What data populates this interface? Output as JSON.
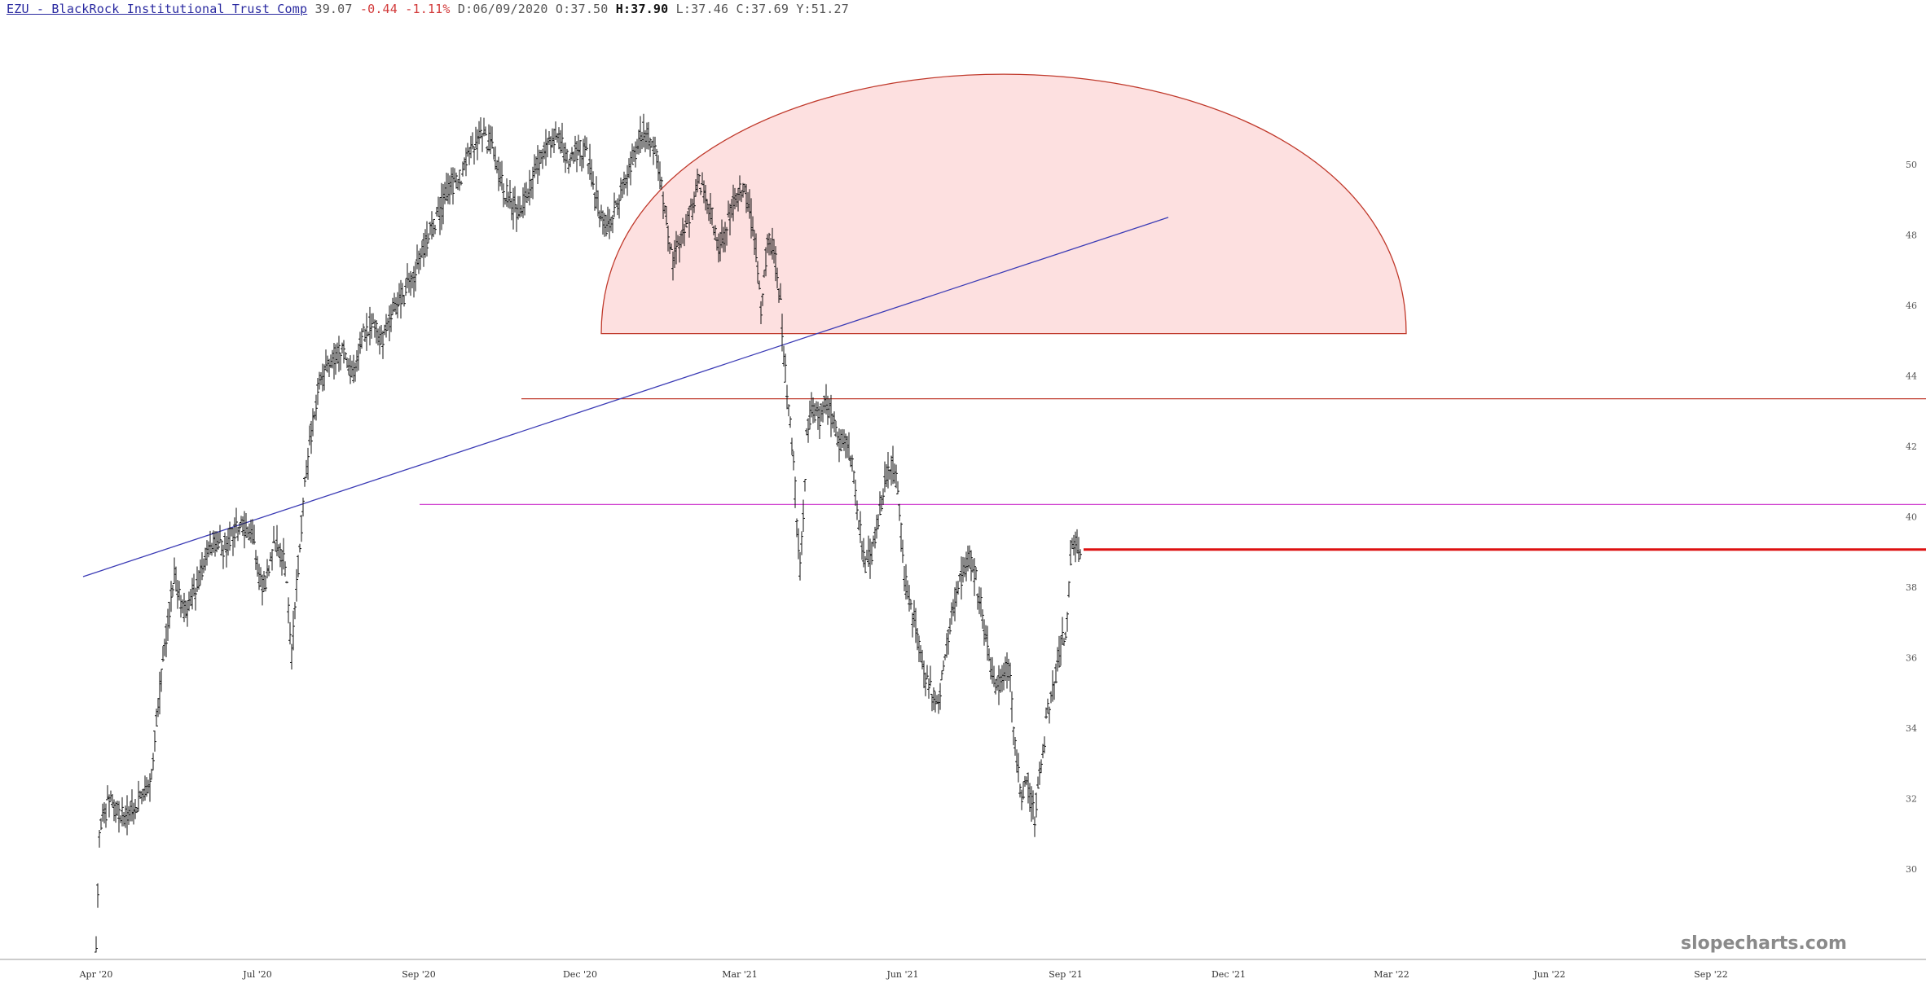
{
  "header": {
    "ticker": "EZU - BlackRock Institutional Trust Comp",
    "last": "39.07",
    "change": "-0.44",
    "change_pct": "-1.11%",
    "date_label": "D:",
    "date": "06/09/2020",
    "open_label": "O:",
    "open": "37.50",
    "high_label": "H:",
    "high": "37.90",
    "low_label": "L:",
    "low": "37.46",
    "close_label": "C:",
    "close": "37.69",
    "y_label": "Y:",
    "y": "51.27"
  },
  "watermark": "slopecharts.com",
  "colors": {
    "bars": "#111111",
    "dome_fill": "#fde0e0",
    "dome_stroke": "#c0392b",
    "trendline": "#3b3bb5",
    "resistance": "#c0392b",
    "support_magenta": "#d24ad2",
    "last_price_marker": "#dd1111"
  },
  "chart_data": {
    "type": "ohlc",
    "x_tick_labels": [
      "Apr '20",
      "Jul '20",
      "Sep '20",
      "Dec '20",
      "Mar '21",
      "Jun '21",
      "Sep '21",
      "Dec '21",
      "Mar '22",
      "Jun '22",
      "Sep '22"
    ],
    "y_ticks": [
      30,
      32,
      34,
      36,
      38,
      40,
      42,
      44,
      46,
      48,
      50
    ],
    "ylim": [
      27.4,
      51.6
    ],
    "close_path": [
      [
        0,
        27.8
      ],
      [
        2,
        31.0
      ],
      [
        8,
        32.0
      ],
      [
        16,
        31.5
      ],
      [
        24,
        31.8
      ],
      [
        30,
        32.2
      ],
      [
        34,
        32.6
      ],
      [
        36,
        33.8
      ],
      [
        40,
        35.5
      ],
      [
        44,
        37.0
      ],
      [
        48,
        38.3
      ],
      [
        54,
        37.3
      ],
      [
        60,
        37.8
      ],
      [
        66,
        38.6
      ],
      [
        72,
        39.3
      ],
      [
        78,
        39.1
      ],
      [
        84,
        39.6
      ],
      [
        90,
        39.8
      ],
      [
        96,
        39.5
      ],
      [
        100,
        38.2
      ],
      [
        104,
        38.0
      ],
      [
        108,
        39.0
      ],
      [
        112,
        39.3
      ],
      [
        116,
        38.5
      ],
      [
        120,
        36.0
      ],
      [
        124,
        38.6
      ],
      [
        128,
        41.0
      ],
      [
        132,
        42.4
      ],
      [
        136,
        43.6
      ],
      [
        140,
        44.0
      ],
      [
        146,
        44.5
      ],
      [
        152,
        44.8
      ],
      [
        158,
        44.0
      ],
      [
        164,
        45.2
      ],
      [
        170,
        45.6
      ],
      [
        176,
        45.0
      ],
      [
        182,
        45.8
      ],
      [
        188,
        46.2
      ],
      [
        194,
        46.8
      ],
      [
        200,
        47.5
      ],
      [
        206,
        48.2
      ],
      [
        212,
        48.8
      ],
      [
        218,
        49.4
      ],
      [
        224,
        49.7
      ],
      [
        230,
        50.5
      ],
      [
        236,
        50.8
      ],
      [
        242,
        50.6
      ],
      [
        248,
        49.5
      ],
      [
        254,
        49.0
      ],
      [
        260,
        48.6
      ],
      [
        266,
        49.4
      ],
      [
        272,
        50.0
      ],
      [
        278,
        50.6
      ],
      [
        284,
        50.8
      ],
      [
        290,
        50.0
      ],
      [
        296,
        50.5
      ],
      [
        302,
        50.2
      ],
      [
        308,
        48.8
      ],
      [
        314,
        48.2
      ],
      [
        320,
        48.9
      ],
      [
        326,
        49.6
      ],
      [
        332,
        50.5
      ],
      [
        336,
        51.0
      ],
      [
        340,
        50.6
      ],
      [
        344,
        50.2
      ],
      [
        350,
        48.5
      ],
      [
        354,
        47.3
      ],
      [
        358,
        47.8
      ],
      [
        362,
        48.3
      ],
      [
        366,
        48.8
      ],
      [
        370,
        49.6
      ],
      [
        374,
        49.2
      ],
      [
        378,
        48.5
      ],
      [
        382,
        47.6
      ],
      [
        386,
        48.0
      ],
      [
        390,
        48.8
      ],
      [
        396,
        49.4
      ],
      [
        400,
        49.0
      ],
      [
        404,
        47.9
      ],
      [
        408,
        46.0
      ],
      [
        412,
        47.8
      ],
      [
        416,
        47.6
      ],
      [
        420,
        46.0
      ],
      [
        422,
        44.5
      ],
      [
        426,
        42.8
      ],
      [
        428,
        41.5
      ],
      [
        432,
        38.5
      ],
      [
        434,
        40.0
      ],
      [
        436,
        42.5
      ],
      [
        440,
        43.0
      ],
      [
        444,
        42.8
      ],
      [
        448,
        43.3
      ],
      [
        452,
        42.8
      ],
      [
        456,
        42.0
      ],
      [
        460,
        42.2
      ],
      [
        464,
        41.4
      ],
      [
        468,
        39.8
      ],
      [
        472,
        38.7
      ],
      [
        476,
        39.0
      ],
      [
        480,
        39.9
      ],
      [
        484,
        41.0
      ],
      [
        488,
        41.6
      ],
      [
        492,
        40.9
      ],
      [
        496,
        38.3
      ],
      [
        500,
        37.3
      ],
      [
        504,
        36.8
      ],
      [
        508,
        35.5
      ],
      [
        512,
        35.2
      ],
      [
        516,
        34.5
      ],
      [
        520,
        35.8
      ],
      [
        524,
        37.0
      ],
      [
        528,
        37.8
      ],
      [
        532,
        38.4
      ],
      [
        536,
        38.8
      ],
      [
        540,
        38.2
      ],
      [
        544,
        37.2
      ],
      [
        548,
        36.0
      ],
      [
        552,
        35.0
      ],
      [
        556,
        35.5
      ],
      [
        560,
        35.8
      ],
      [
        564,
        33.5
      ],
      [
        568,
        32.0
      ],
      [
        572,
        32.5
      ],
      [
        576,
        31.5
      ],
      [
        580,
        33.0
      ],
      [
        584,
        34.5
      ],
      [
        588,
        35.2
      ],
      [
        592,
        36.3
      ],
      [
        596,
        37.0
      ],
      [
        598,
        38.8
      ],
      [
        600,
        39.4
      ],
      [
        604,
        39.07
      ]
    ],
    "annotations": {
      "rounded_top_base": 45.2,
      "resistance_level": 43.35,
      "support_level": 40.35,
      "trendline": [
        [
          -8,
          38.3
        ],
        [
          658,
          48.5
        ]
      ],
      "last_price": 39.07
    }
  }
}
